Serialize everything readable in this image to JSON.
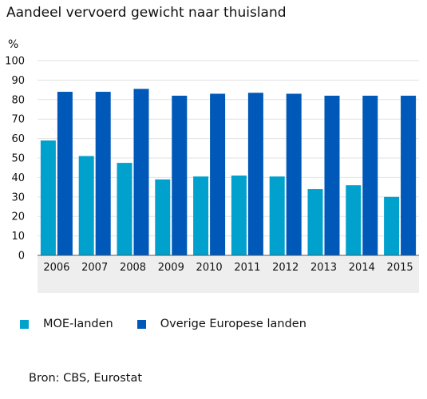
{
  "chart_data": {
    "type": "bar",
    "title": "Aandeel vervoerd gewicht naar thuisland",
    "ylabel": "%",
    "xlabel": "",
    "ylim": [
      0,
      100
    ],
    "yticks": [
      0,
      10,
      20,
      30,
      40,
      50,
      60,
      70,
      80,
      90,
      100
    ],
    "grid": true,
    "legend_position": "bottom",
    "categories": [
      "2006",
      "2007",
      "2008",
      "2009",
      "2010",
      "2011",
      "2012",
      "2013",
      "2014",
      "2015"
    ],
    "series": [
      {
        "name": "MOE-landen",
        "color": "#00a1cd",
        "values": [
          59,
          51,
          47.5,
          39,
          40.5,
          41,
          40.5,
          34,
          36,
          30
        ]
      },
      {
        "name": "Overige Europese landen",
        "color": "#0058b8",
        "values": [
          84,
          84,
          85.5,
          82,
          83,
          83.5,
          83,
          82,
          82,
          82
        ]
      }
    ]
  },
  "source": "Bron: CBS, Eurostat"
}
